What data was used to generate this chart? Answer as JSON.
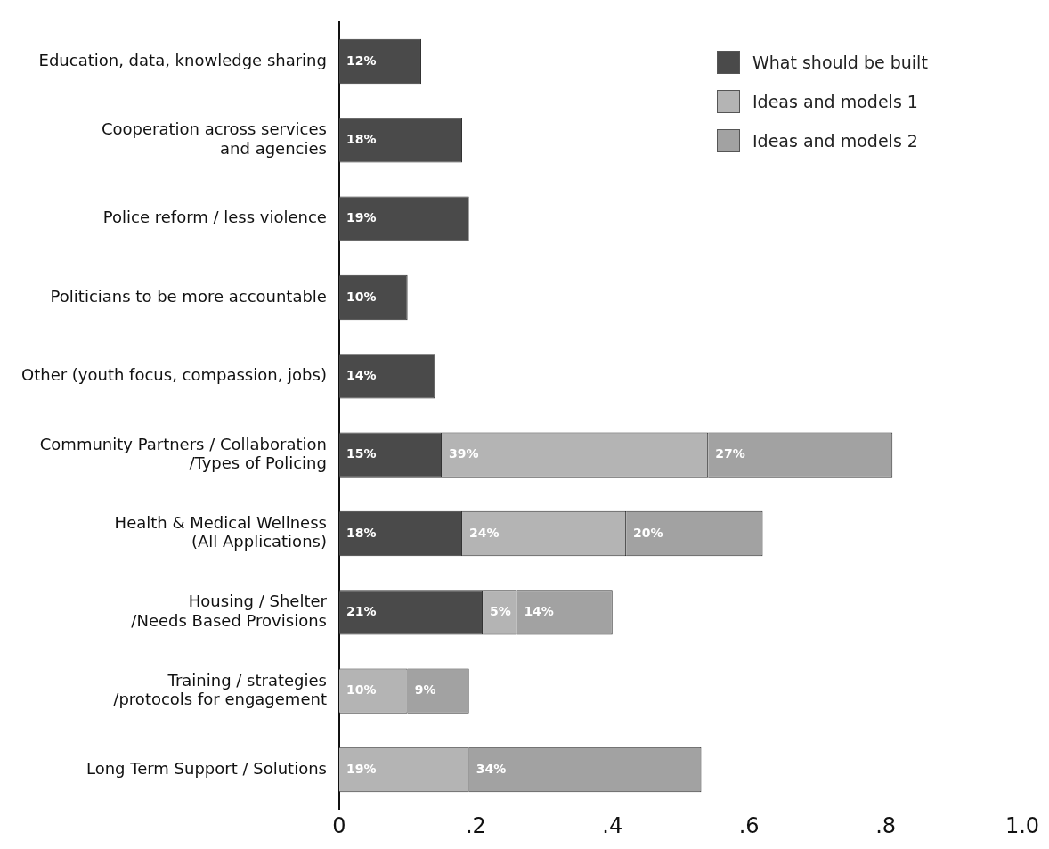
{
  "chart_data": {
    "type": "bar",
    "orientation": "horizontal",
    "stacked": true,
    "categories": [
      "Education, data, knowledge sharing",
      "Cooperation across services\nand agencies",
      "Police reform / less violence",
      "Politicians to be more accountable",
      "Other (youth focus, compassion, jobs)",
      "Community Partners / Collaboration\n/Types of Policing",
      "Health & Medical Wellness\n(All Applications)",
      "Housing / Shelter\n/Needs Based Provisions",
      "Training / strategies\n/protocols for engagement",
      "Long Term Support / Solutions"
    ],
    "series": [
      {
        "name": "What should be built",
        "color": "#4a4a4a",
        "values": [
          0.12,
          0.18,
          0.19,
          0.1,
          0.14,
          0.15,
          0.18,
          0.21,
          null,
          null
        ],
        "value_labels": [
          "12%",
          "18%",
          "19%",
          "10%",
          "14%",
          "15%",
          "18%",
          "21%",
          null,
          null
        ]
      },
      {
        "name": "Ideas and models 1",
        "color": "#b4b4b4",
        "values": [
          null,
          null,
          null,
          null,
          null,
          0.39,
          0.24,
          0.05,
          0.1,
          0.19
        ],
        "value_labels": [
          null,
          null,
          null,
          null,
          null,
          "39%",
          "24%",
          "5%",
          "10%",
          "19%"
        ]
      },
      {
        "name": "Ideas and models 2",
        "color": "#a2a2a2",
        "values": [
          null,
          null,
          null,
          null,
          null,
          0.27,
          0.2,
          0.14,
          0.09,
          0.34
        ],
        "value_labels": [
          null,
          null,
          null,
          null,
          null,
          "27%",
          "20%",
          "14%",
          "9%",
          "34%"
        ]
      }
    ],
    "xlim": [
      0,
      1
    ],
    "xticks": [
      0,
      {
        "value": 0.2,
        "label": ".2"
      },
      {
        "value": 0.4,
        "label": ".4"
      },
      {
        "value": 0.6,
        "label": ".6"
      },
      {
        "value": 0.8,
        "label": ".8"
      },
      {
        "value": 1,
        "label": "1.0"
      }
    ],
    "grid": false,
    "legend": "top right"
  }
}
